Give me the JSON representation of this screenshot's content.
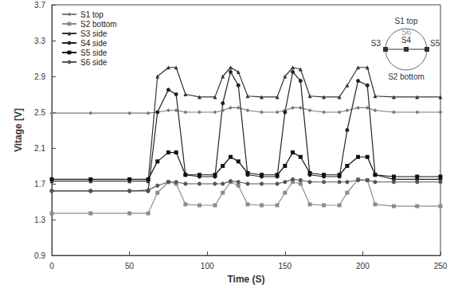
{
  "chart_data": {
    "type": "line",
    "x_label": "Time (S)",
    "y_label": "Vitage [V]",
    "x": [
      0,
      25,
      50,
      62,
      68,
      75,
      80,
      86,
      95,
      105,
      110,
      115,
      120,
      126,
      135,
      145,
      150,
      155,
      160,
      166,
      175,
      185,
      190,
      197,
      203,
      208,
      220,
      235,
      250
    ],
    "series": [
      {
        "name": "S1 top",
        "color": "#7a7a7a",
        "marker": "diamond",
        "values": [
          2.49,
          2.49,
          2.49,
          2.49,
          2.5,
          2.52,
          2.52,
          2.5,
          2.5,
          2.5,
          2.52,
          2.55,
          2.55,
          2.52,
          2.5,
          2.5,
          2.52,
          2.55,
          2.55,
          2.52,
          2.5,
          2.5,
          2.52,
          2.55,
          2.55,
          2.52,
          2.5,
          2.5,
          2.5
        ]
      },
      {
        "name": "S2 bottom",
        "color": "#8c8c8c",
        "marker": "square",
        "values": [
          1.37,
          1.37,
          1.37,
          1.37,
          1.6,
          1.72,
          1.7,
          1.47,
          1.46,
          1.46,
          1.6,
          1.72,
          1.68,
          1.47,
          1.46,
          1.46,
          1.6,
          1.72,
          1.7,
          1.47,
          1.46,
          1.46,
          1.6,
          1.75,
          1.74,
          1.47,
          1.45,
          1.45,
          1.45
        ]
      },
      {
        "name": "S3 side",
        "color": "#333333",
        "marker": "triangle",
        "values": [
          1.73,
          1.73,
          1.73,
          1.73,
          2.9,
          3.0,
          3.0,
          2.7,
          2.67,
          2.67,
          2.9,
          3.0,
          2.95,
          2.68,
          2.67,
          2.67,
          2.9,
          3.0,
          2.98,
          2.68,
          2.67,
          2.67,
          2.8,
          3.0,
          3.0,
          2.68,
          2.67,
          2.67,
          2.67
        ]
      },
      {
        "name": "S4 side",
        "color": "#222222",
        "marker": "circle",
        "values": [
          1.62,
          1.62,
          1.62,
          1.62,
          2.5,
          2.75,
          2.7,
          1.8,
          1.78,
          1.78,
          2.6,
          2.95,
          2.8,
          1.8,
          1.78,
          1.78,
          2.5,
          2.95,
          2.85,
          1.8,
          1.78,
          1.78,
          2.3,
          2.85,
          2.8,
          1.8,
          1.75,
          1.75,
          1.75
        ]
      },
      {
        "name": "S5 side",
        "color": "#111111",
        "marker": "square",
        "values": [
          1.75,
          1.75,
          1.75,
          1.75,
          1.95,
          2.05,
          2.05,
          1.8,
          1.8,
          1.8,
          1.9,
          2.0,
          1.95,
          1.82,
          1.8,
          1.8,
          1.9,
          2.05,
          2.0,
          1.82,
          1.8,
          1.8,
          1.9,
          2.0,
          2.0,
          1.8,
          1.78,
          1.78,
          1.78
        ]
      },
      {
        "name": "S6 side",
        "color": "#555555",
        "marker": "circle",
        "values": [
          1.62,
          1.62,
          1.62,
          1.63,
          1.68,
          1.72,
          1.72,
          1.7,
          1.7,
          1.7,
          1.7,
          1.73,
          1.72,
          1.7,
          1.7,
          1.7,
          1.72,
          1.75,
          1.74,
          1.72,
          1.72,
          1.72,
          1.72,
          1.74,
          1.74,
          1.72,
          1.72,
          1.72,
          1.72
        ]
      }
    ],
    "xlim": [
      0,
      250
    ],
    "xticks": [
      0,
      50,
      100,
      150,
      200,
      250
    ],
    "ylim": [
      0.9,
      3.7
    ],
    "yticks": [
      0.9,
      1.3,
      1.7,
      2.1,
      2.5,
      2.9,
      3.3,
      3.7
    ],
    "grid": false,
    "legend": "upper left",
    "annotations": [
      "S1 top",
      "S2 bottom",
      "S3",
      "S4",
      "S5",
      "S6"
    ]
  }
}
